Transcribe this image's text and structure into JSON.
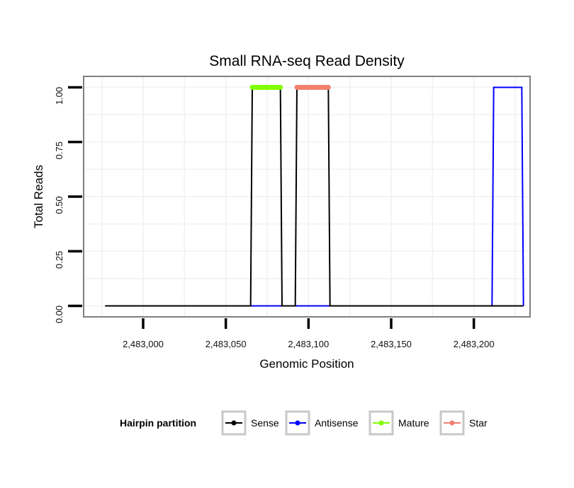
{
  "chart_data": {
    "type": "line",
    "title": "Small RNA-seq Read Density",
    "xlabel": "Genomic Position",
    "ylabel": "Total Reads",
    "xlim": [
      2482964,
      2483234
    ],
    "ylim": [
      -0.05,
      1.05
    ],
    "x_ticks": [
      {
        "value": 2483000,
        "label": "2,483,000"
      },
      {
        "value": 2483050,
        "label": "2,483,050"
      },
      {
        "value": 2483100,
        "label": "2,483,100"
      },
      {
        "value": 2483150,
        "label": "2,483,150"
      },
      {
        "value": 2483200,
        "label": "2,483,200"
      }
    ],
    "y_ticks": [
      {
        "value": 0,
        "label": "0.00"
      },
      {
        "value": 0.25,
        "label": "0.25"
      },
      {
        "value": 0.5,
        "label": "0.50"
      },
      {
        "value": 0.75,
        "label": "0.75"
      },
      {
        "value": 1,
        "label": "1.00"
      }
    ],
    "series": [
      {
        "name": "Sense",
        "color": "#000000",
        "points": [
          [
            2482977,
            0
          ],
          [
            2483065,
            0
          ],
          [
            2483066,
            1
          ],
          [
            2483083,
            1
          ],
          [
            2483084,
            0
          ],
          [
            2483092,
            0
          ],
          [
            2483093,
            1
          ],
          [
            2483112,
            1
          ],
          [
            2483113,
            0
          ],
          [
            2483230,
            0
          ]
        ]
      },
      {
        "name": "Antisense",
        "color": "#0000ff",
        "points": [
          [
            2483065,
            0
          ],
          [
            2483112,
            0
          ],
          [
            2483211,
            0
          ],
          [
            2483212,
            1
          ],
          [
            2483229,
            1
          ],
          [
            2483230,
            0
          ]
        ]
      },
      {
        "name": "Mature",
        "color": "#7fff00",
        "points": [
          [
            2483066,
            1
          ],
          [
            2483083,
            1
          ]
        ]
      },
      {
        "name": "Star",
        "color": "#f08070",
        "points": [
          [
            2483093,
            1
          ],
          [
            2483112,
            1
          ]
        ]
      }
    ],
    "legend": {
      "title": "Hairpin partition",
      "position": "bottom",
      "items": [
        {
          "name": "Sense",
          "color": "#000000"
        },
        {
          "name": "Antisense",
          "color": "#0000ff"
        },
        {
          "name": "Mature",
          "color": "#7fff00"
        },
        {
          "name": "Star",
          "color": "#f08070"
        }
      ]
    }
  }
}
